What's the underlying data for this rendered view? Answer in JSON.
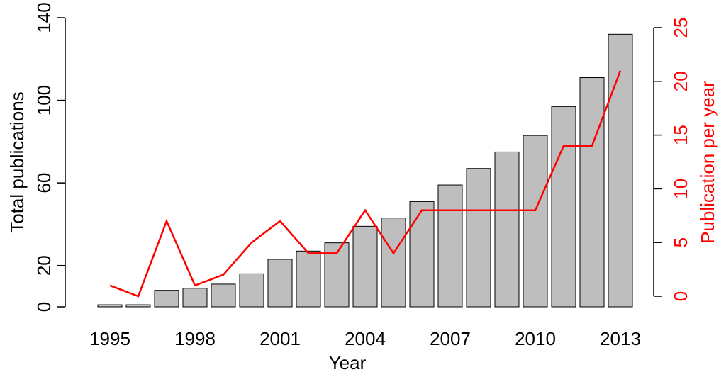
{
  "chart_data": {
    "type": "bar-line",
    "x_label": "Year",
    "y_label": "Total publications",
    "y2_label": "Publication per year",
    "categories": [
      1995,
      null,
      null,
      1998,
      null,
      null,
      2001,
      null,
      null,
      2004,
      null,
      null,
      2007,
      null,
      null,
      2010,
      null,
      null,
      2013
    ],
    "series": [
      {
        "name": "Total publications",
        "type": "bar",
        "color": "#bebebe",
        "values": [
          1,
          1,
          8,
          9,
          11,
          16,
          23,
          27,
          31,
          39,
          43,
          51,
          59,
          67,
          75,
          83,
          97,
          111,
          132
        ]
      },
      {
        "name": "Publication per year",
        "type": "line",
        "axis": "y2",
        "color": "#ff0000",
        "values": [
          1,
          0,
          7,
          1,
          2,
          5,
          7,
          4,
          4,
          8,
          4,
          8,
          8,
          8,
          8,
          8,
          14,
          14,
          21
        ]
      }
    ],
    "ylim": [
      0,
      140
    ],
    "yticks": [
      0,
      20,
      60,
      100,
      140
    ],
    "y2lim": [
      0,
      25
    ],
    "y2ticks": [
      0,
      5,
      10,
      15,
      20,
      25
    ],
    "y2_color": "#ff0000"
  }
}
